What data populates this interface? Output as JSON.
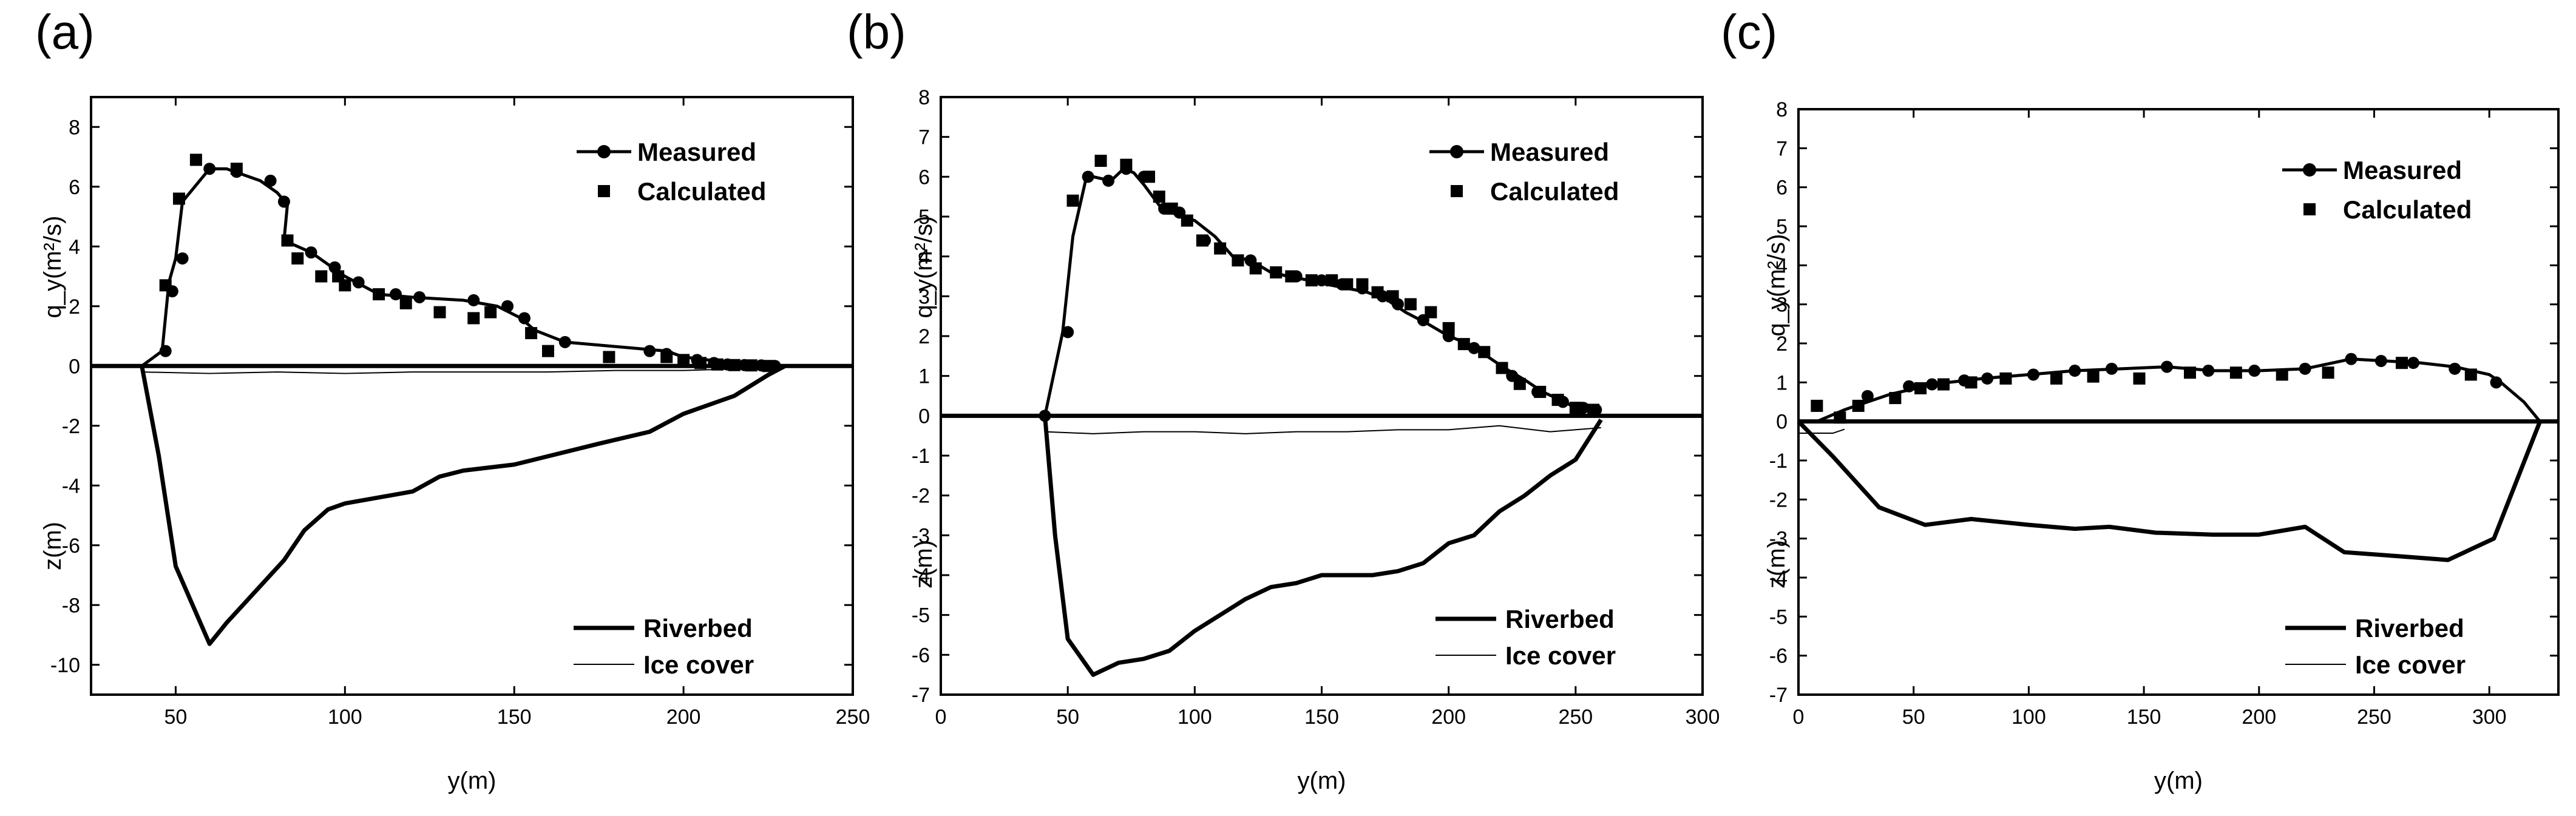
{
  "colors": {
    "ink": "#000000",
    "background": "#ffffff"
  },
  "chart_data": [
    {
      "panel": "(a)",
      "type": "line",
      "xlabel": "y(m)",
      "ylabel_top": "q_y(m²/s)",
      "ylabel_bottom": "z(m)",
      "xlim": [
        25,
        250
      ],
      "ylim": [
        -11,
        9
      ],
      "xticks": [
        50,
        100,
        150,
        200,
        250
      ],
      "yticks": [
        -10,
        -8,
        -6,
        -4,
        -2,
        0,
        2,
        4,
        6,
        8
      ],
      "legend_top": [
        "Measured",
        "Calculated"
      ],
      "legend_bottom": [
        "Riverbed",
        "Ice cover"
      ],
      "series": [
        {
          "name": "Measured",
          "style": "line-circle",
          "x": [
            40,
            46,
            48,
            50,
            52,
            60,
            65,
            70,
            75,
            80,
            83,
            82,
            90,
            100,
            110,
            120,
            135,
            145,
            152,
            156,
            165,
            195,
            200,
            215,
            225,
            230
          ],
          "y": [
            0,
            0.5,
            2.8,
            3.6,
            5.5,
            6.6,
            6.6,
            6.4,
            6.2,
            5.8,
            5.4,
            4.2,
            3.8,
            3.0,
            2.4,
            2.3,
            2.2,
            2.0,
            1.6,
            1.2,
            0.8,
            0.5,
            0.3,
            0.1,
            0.05,
            0
          ],
          "markers_x": [
            47,
            49,
            52,
            60,
            68,
            78,
            82,
            90,
            97,
            104,
            115,
            122,
            138,
            148,
            153,
            165,
            190,
            195,
            204,
            209,
            213,
            218,
            223,
            227
          ],
          "markers_y": [
            0.5,
            2.5,
            3.6,
            6.6,
            6.5,
            6.2,
            5.5,
            3.8,
            3.3,
            2.8,
            2.4,
            2.3,
            2.2,
            2.0,
            1.6,
            0.8,
            0.5,
            0.4,
            0.2,
            0.1,
            0.05,
            0.03,
            0.02,
            0
          ]
        },
        {
          "name": "Calculated",
          "style": "square",
          "x": [
            47,
            51,
            56,
            68,
            83,
            86,
            93,
            98,
            100,
            110,
            118,
            128,
            138,
            143,
            155,
            160,
            178,
            195,
            200,
            205,
            210,
            215,
            220,
            225
          ],
          "y": [
            2.7,
            5.6,
            6.9,
            6.6,
            4.2,
            3.6,
            3.0,
            3.0,
            2.7,
            2.4,
            2.1,
            1.8,
            1.6,
            1.8,
            1.1,
            0.5,
            0.3,
            0.3,
            0.2,
            0.1,
            0.05,
            0.03,
            0.02,
            0
          ]
        },
        {
          "name": "Riverbed",
          "style": "thick-line",
          "x": [
            40,
            45,
            50,
            60,
            65,
            82,
            88,
            95,
            100,
            110,
            120,
            128,
            135,
            150,
            175,
            190,
            200,
            215,
            225,
            230
          ],
          "y": [
            0,
            -3,
            -6.7,
            -9.3,
            -8.6,
            -6.5,
            -5.5,
            -4.8,
            -4.6,
            -4.4,
            -4.2,
            -3.7,
            -3.5,
            -3.3,
            -2.6,
            -2.2,
            -1.6,
            -1.0,
            -0.3,
            0
          ]
        },
        {
          "name": "Ice cover",
          "style": "thin-line",
          "x": [
            40,
            60,
            80,
            100,
            120,
            140,
            160,
            180,
            200,
            215,
            230
          ],
          "y": [
            -0.2,
            -0.25,
            -0.2,
            -0.25,
            -0.2,
            -0.2,
            -0.2,
            -0.15,
            -0.15,
            -0.1,
            -0.05
          ]
        }
      ]
    },
    {
      "panel": "(b)",
      "type": "line",
      "xlabel": "y(m)",
      "ylabel_top": "q_y(m²/s)",
      "ylabel_bottom": "z(m)",
      "xlim": [
        0,
        300
      ],
      "ylim": [
        -7,
        8
      ],
      "xticks": [
        0,
        50,
        100,
        150,
        200,
        250,
        300
      ],
      "yticks": [
        -7,
        -6,
        -5,
        -4,
        -3,
        -2,
        -1,
        0,
        1,
        2,
        3,
        4,
        5,
        6,
        7,
        8
      ],
      "legend_top": [
        "Measured",
        "Calculated"
      ],
      "legend_bottom": [
        "Riverbed",
        "Ice cover"
      ],
      "series": [
        {
          "name": "Measured",
          "style": "line-circle",
          "x": [
            41,
            48,
            52,
            57,
            60,
            67,
            72,
            76,
            80,
            87,
            95,
            100,
            108,
            115,
            122,
            130,
            137,
            145,
            152,
            160,
            168,
            176,
            183,
            192,
            200,
            208,
            215,
            222,
            230,
            237,
            244,
            250,
            255,
            260
          ],
          "y": [
            0,
            2.1,
            4.5,
            5.9,
            6.0,
            5.9,
            6.2,
            6.1,
            5.8,
            5.2,
            5.0,
            4.9,
            4.5,
            4.0,
            3.9,
            3.6,
            3.5,
            3.4,
            3.3,
            3.2,
            3.1,
            2.9,
            2.6,
            2.3,
            2.0,
            1.8,
            1.5,
            1.2,
            0.9,
            0.6,
            0.4,
            0.2,
            0.15,
            0.1
          ],
          "markers_x": [
            41,
            50,
            58,
            66,
            73,
            80,
            88,
            94,
            104,
            110,
            122,
            132,
            140,
            150,
            158,
            166,
            174,
            180,
            190,
            200,
            210,
            225,
            235,
            245,
            253,
            258
          ],
          "markers_y": [
            0,
            2.1,
            6.0,
            5.9,
            6.2,
            6.0,
            5.2,
            5.1,
            4.4,
            4.2,
            3.9,
            3.6,
            3.5,
            3.4,
            3.3,
            3.2,
            3.0,
            2.8,
            2.4,
            2.0,
            1.7,
            1.0,
            0.6,
            0.35,
            0.2,
            0.15
          ]
        },
        {
          "name": "Calculated",
          "style": "square",
          "x": [
            52,
            63,
            73,
            82,
            86,
            91,
            97,
            103,
            110,
            117,
            124,
            132,
            138,
            146,
            154,
            160,
            166,
            172,
            178,
            185,
            193,
            200,
            206,
            214,
            221,
            228,
            236,
            243,
            250,
            257
          ],
          "y": [
            5.4,
            6.4,
            6.3,
            6.0,
            5.5,
            5.2,
            4.9,
            4.4,
            4.2,
            3.9,
            3.7,
            3.6,
            3.5,
            3.4,
            3.4,
            3.3,
            3.3,
            3.1,
            3.0,
            2.8,
            2.6,
            2.2,
            1.8,
            1.6,
            1.2,
            0.8,
            0.6,
            0.4,
            0.2,
            0.15
          ]
        },
        {
          "name": "Riverbed",
          "style": "thick-line",
          "x": [
            41,
            45,
            50,
            60,
            70,
            80,
            90,
            100,
            110,
            120,
            130,
            140,
            150,
            160,
            170,
            180,
            190,
            200,
            210,
            220,
            230,
            240,
            250,
            260
          ],
          "y": [
            0,
            -3,
            -5.6,
            -6.5,
            -6.2,
            -6.1,
            -5.9,
            -5.4,
            -5.0,
            -4.6,
            -4.3,
            -4.2,
            -4.0,
            -4.0,
            -4.0,
            -3.9,
            -3.7,
            -3.2,
            -3.0,
            -2.4,
            -2.0,
            -1.5,
            -1.1,
            -0.1
          ]
        },
        {
          "name": "Ice cover",
          "style": "thin-line",
          "x": [
            41,
            60,
            80,
            100,
            120,
            140,
            160,
            180,
            200,
            220,
            240,
            260
          ],
          "y": [
            -0.4,
            -0.45,
            -0.4,
            -0.4,
            -0.45,
            -0.4,
            -0.4,
            -0.35,
            -0.35,
            -0.25,
            -0.4,
            -0.3
          ]
        }
      ]
    },
    {
      "panel": "(c)",
      "type": "line",
      "xlabel": "y(m)",
      "ylabel_top": "q_y(m²/s)",
      "ylabel_bottom": "z(m)",
      "xlim": [
        0,
        330
      ],
      "ylim": [
        -7,
        8
      ],
      "xticks": [
        0,
        50,
        100,
        150,
        200,
        250,
        300
      ],
      "yticks": [
        -7,
        -6,
        -5,
        -4,
        -3,
        -2,
        -1,
        0,
        1,
        2,
        3,
        4,
        5,
        6,
        7,
        8
      ],
      "legend_top": [
        "Measured",
        "Calculated"
      ],
      "legend_bottom": [
        "Riverbed",
        "Ice cover"
      ],
      "series": [
        {
          "name": "Measured",
          "style": "line-circle",
          "x": [
            8,
            20,
            30,
            40,
            55,
            65,
            80,
            100,
            120,
            140,
            160,
            180,
            200,
            220,
            240,
            255,
            270,
            285,
            300,
            305,
            315,
            322
          ],
          "y": [
            0,
            0.3,
            0.5,
            0.7,
            0.9,
            1.0,
            1.1,
            1.2,
            1.3,
            1.35,
            1.4,
            1.3,
            1.3,
            1.35,
            1.6,
            1.55,
            1.5,
            1.4,
            1.2,
            1.0,
            0.5,
            0
          ],
          "markers_x": [
            30,
            48,
            58,
            72,
            82,
            102,
            120,
            136,
            160,
            178,
            198,
            220,
            240,
            253,
            267,
            285,
            303
          ],
          "markers_y": [
            0.65,
            0.9,
            0.95,
            1.05,
            1.1,
            1.2,
            1.3,
            1.35,
            1.4,
            1.3,
            1.3,
            1.35,
            1.6,
            1.55,
            1.5,
            1.35,
            1.0
          ]
        },
        {
          "name": "Calculated",
          "style": "square",
          "x": [
            8,
            18,
            26,
            42,
            53,
            63,
            75,
            90,
            112,
            128,
            148,
            170,
            190,
            210,
            230,
            262,
            292
          ],
          "y": [
            0.4,
            0.1,
            0.4,
            0.6,
            0.85,
            0.95,
            1.0,
            1.1,
            1.1,
            1.15,
            1.1,
            1.25,
            1.25,
            1.2,
            1.25,
            1.5,
            1.2
          ]
        },
        {
          "name": "Riverbed",
          "style": "thick-line",
          "x": [
            0,
            15,
            35,
            55,
            75,
            100,
            120,
            135,
            155,
            180,
            200,
            220,
            237,
            260,
            282,
            302,
            322
          ],
          "y": [
            0,
            -0.9,
            -2.2,
            -2.65,
            -2.5,
            -2.65,
            -2.75,
            -2.7,
            -2.85,
            -2.9,
            -2.9,
            -2.7,
            -3.35,
            -3.45,
            -3.55,
            -3.0,
            0
          ]
        },
        {
          "name": "Ice cover",
          "style": "thin-line",
          "x": [
            0,
            5,
            10,
            15,
            20
          ],
          "y": [
            -0.3,
            -0.3,
            -0.3,
            -0.3,
            -0.2
          ]
        }
      ]
    }
  ]
}
